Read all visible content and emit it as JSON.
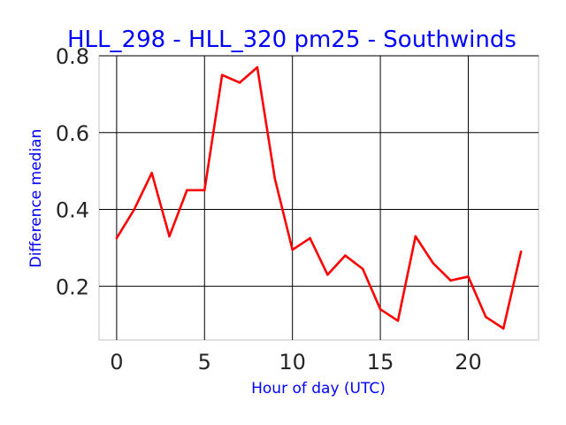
{
  "chart_data": {
    "type": "line",
    "title": "HLL_298 - HLL_320 pm25 - Southwinds",
    "xlabel": "Hour of day (UTC)",
    "ylabel": "Difference median",
    "xlim": [
      -1,
      24
    ],
    "ylim": [
      0.06,
      0.8
    ],
    "xticks": [
      0,
      5,
      10,
      15,
      20
    ],
    "yticks": [
      0.2,
      0.4,
      0.6,
      0.8
    ],
    "xtick_labels": [
      "0",
      "5",
      "10",
      "15",
      "20"
    ],
    "ytick_labels": [
      "0.2",
      "0.4",
      "0.6",
      "0.8"
    ],
    "grid": true,
    "series": [
      {
        "color": "#ff0000",
        "x": [
          0,
          1,
          2,
          3,
          4,
          5,
          6,
          7,
          8,
          9,
          10,
          11,
          12,
          13,
          14,
          15,
          16,
          17,
          18,
          19,
          20,
          21,
          22,
          23
        ],
        "y": [
          0.325,
          0.4,
          0.495,
          0.33,
          0.45,
          0.45,
          0.75,
          0.73,
          0.77,
          0.48,
          0.295,
          0.325,
          0.23,
          0.28,
          0.245,
          0.14,
          0.11,
          0.33,
          0.26,
          0.215,
          0.225,
          0.12,
          0.09,
          0.29
        ]
      }
    ]
  }
}
